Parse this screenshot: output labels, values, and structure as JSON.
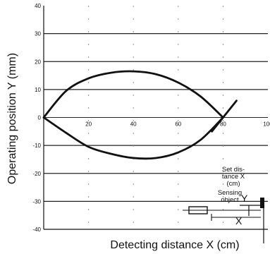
{
  "chart_data": {
    "type": "line",
    "xlabel": "Detecting distance X (cm)",
    "ylabel": "Operating position Y  (mm)",
    "xlim": [
      0,
      100
    ],
    "ylim": [
      -40,
      40
    ],
    "x_ticks": [
      "20",
      "40",
      "60",
      "80",
      "100"
    ],
    "y_ticks": [
      "40",
      "30",
      "20",
      "10",
      "0",
      "-10",
      "-20",
      "-30",
      "-40"
    ],
    "grid": true,
    "series": [
      {
        "x": [
          0,
          10,
          20,
          30,
          40,
          50,
          60,
          70,
          80
        ],
        "y": [
          0,
          9.5,
          14,
          16,
          16.5,
          15.5,
          12.5,
          7.5,
          0
        ]
      },
      {
        "x": [
          0,
          10,
          20,
          30,
          40,
          50,
          60,
          70,
          80
        ],
        "y": [
          0,
          -5.5,
          -10.5,
          -13,
          -14.5,
          -14.5,
          -12.5,
          -8,
          0
        ]
      },
      {
        "x": [
          75,
          86
        ],
        "y": [
          -5,
          6
        ]
      }
    ],
    "inset": {
      "set_distance_label": "Set dis-\ntance X\n(cm)",
      "sensing_object_label": "Sensing\nobject",
      "y_label": "Y",
      "x_label": "X"
    }
  }
}
